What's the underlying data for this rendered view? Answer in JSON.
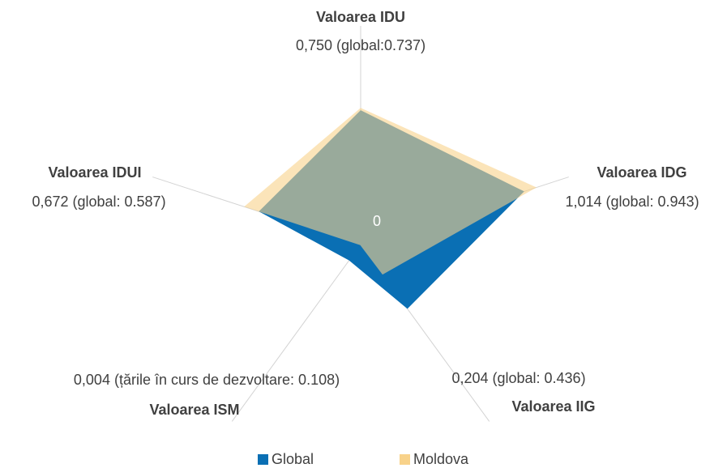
{
  "chart_data": {
    "type": "radar",
    "categories": [
      "Valoarea IDU",
      "Valoarea IDG",
      "Valoarea IIG",
      "Valoarea ISM",
      "Valoarea IDUI"
    ],
    "annotations": [
      "0,750  (global:0.737)",
      "1,014  (global: 0.943)",
      "0,204  (global: 0.436)",
      "0,004  (țările în curs de dezvoltare: 0.108)",
      "0,672  (global: 0.587)"
    ],
    "series": [
      {
        "name": "Global",
        "color": "#0a6fb4",
        "values": [
          0.737,
          0.943,
          0.436,
          0.108,
          0.587
        ]
      },
      {
        "name": "Moldova",
        "color": "#f8d28a",
        "values": [
          0.75,
          1.014,
          0.204,
          0.004,
          0.672
        ]
      }
    ],
    "ylim": [
      0,
      1.2
    ],
    "yticks": [
      0
    ]
  }
}
